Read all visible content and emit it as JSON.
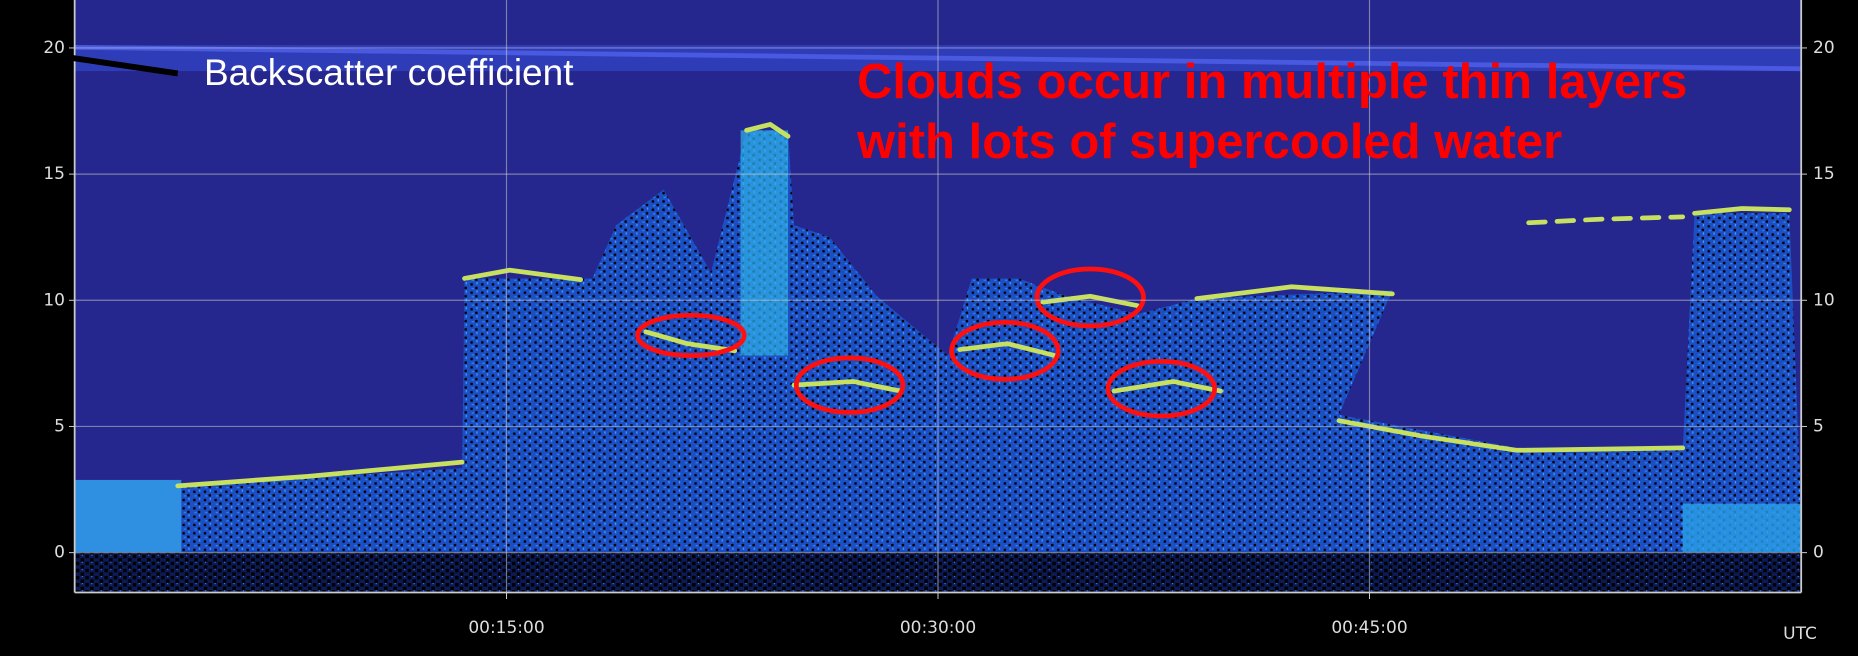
{
  "chart_data": {
    "type": "lidar",
    "label": "Backscatter coefficient",
    "annotation": "Clouds occur in multiple thin layers with lots of supercooled water",
    "xlabel": "UTC",
    "xlim": [
      0,
      60
    ],
    "xticks": [
      {
        "value": 15,
        "label": "00:15:00"
      },
      {
        "value": 30,
        "label": "00:30:00"
      },
      {
        "value": 45,
        "label": "00:45:00"
      }
    ],
    "ylim": [
      -1.6,
      21.9
    ],
    "yticks": [
      0,
      5,
      10,
      15,
      20
    ],
    "grid": true
  }
}
